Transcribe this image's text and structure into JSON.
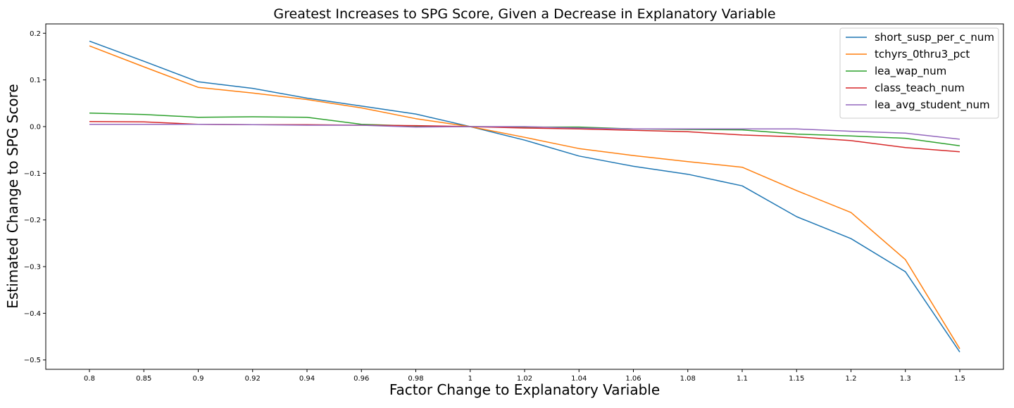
{
  "chart_data": {
    "type": "line",
    "title": "Greatest Increases to SPG Score, Given a Decrease in Explanatory Variable",
    "xlabel": "Factor Change to Explanatory Variable",
    "ylabel": "Estimated Change to SPG Score",
    "x": [
      "0.8",
      "0.85",
      "0.9",
      "0.92",
      "0.94",
      "0.96",
      "0.98",
      "1",
      "1.02",
      "1.04",
      "1.06",
      "1.08",
      "1.1",
      "1.15",
      "1.2",
      "1.3",
      "1.5"
    ],
    "ylim": [
      -0.52,
      0.22
    ],
    "yticks": [
      0.2,
      0.1,
      0.0,
      -0.1,
      -0.2,
      -0.3,
      -0.4,
      -0.5
    ],
    "ytick_labels": [
      "0.2",
      "0.1",
      "0.0",
      "−0.1",
      "−0.2",
      "−0.3",
      "−0.4",
      "−0.5"
    ],
    "grid": false,
    "legend_position": "top-right",
    "series": [
      {
        "name": "short_susp_per_c_num",
        "color": "#1f77b4",
        "values": [
          0.183,
          0.14,
          0.096,
          0.082,
          0.061,
          0.044,
          0.027,
          0.0,
          -0.029,
          -0.063,
          -0.085,
          -0.102,
          -0.127,
          -0.193,
          -0.24,
          -0.311,
          -0.483
        ]
      },
      {
        "name": "tchyrs_0thru3_pct",
        "color": "#ff7f0e",
        "values": [
          0.173,
          0.128,
          0.084,
          0.072,
          0.058,
          0.04,
          0.017,
          0.0,
          -0.023,
          -0.047,
          -0.062,
          -0.075,
          -0.087,
          -0.137,
          -0.184,
          -0.285,
          -0.476
        ]
      },
      {
        "name": "lea_wap_num",
        "color": "#2ca02c",
        "values": [
          0.029,
          0.026,
          0.02,
          0.021,
          0.02,
          0.005,
          0.001,
          0.0,
          -0.001,
          -0.001,
          -0.005,
          -0.006,
          -0.007,
          -0.016,
          -0.02,
          -0.025,
          -0.041
        ]
      },
      {
        "name": "class_teach_num",
        "color": "#d62728",
        "values": [
          0.011,
          0.01,
          0.005,
          0.004,
          0.004,
          0.003,
          0.002,
          0.0,
          -0.003,
          -0.005,
          -0.008,
          -0.011,
          -0.018,
          -0.022,
          -0.03,
          -0.045,
          -0.054
        ]
      },
      {
        "name": "lea_avg_student_num",
        "color": "#9467bd",
        "values": [
          0.005,
          0.005,
          0.005,
          0.004,
          0.003,
          0.003,
          -0.001,
          0.0,
          0.0,
          -0.003,
          -0.005,
          -0.005,
          -0.005,
          -0.005,
          -0.01,
          -0.014,
          -0.027
        ]
      }
    ]
  }
}
